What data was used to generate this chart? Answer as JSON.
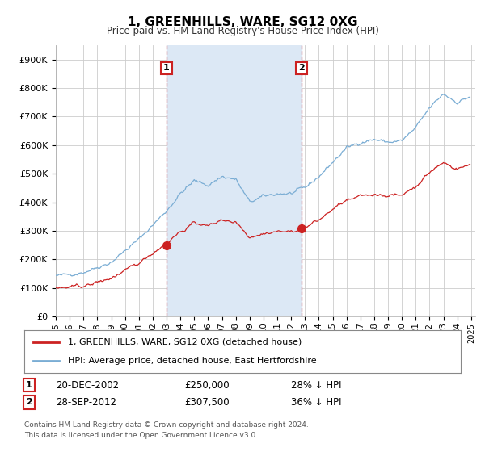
{
  "title": "1, GREENHILLS, WARE, SG12 0XG",
  "subtitle": "Price paid vs. HM Land Registry's House Price Index (HPI)",
  "background_color": "#ffffff",
  "plot_background": "#ffffff",
  "grid_color": "#cccccc",
  "hpi_color": "#7aadd4",
  "price_color": "#cc2222",
  "legend_label_price": "1, GREENHILLS, WARE, SG12 0XG (detached house)",
  "legend_label_hpi": "HPI: Average price, detached house, East Hertfordshire",
  "sale1_date": "20-DEC-2002",
  "sale1_price": "£250,000",
  "sale1_hpi": "28% ↓ HPI",
  "sale2_date": "28-SEP-2012",
  "sale2_price": "£307,500",
  "sale2_hpi": "36% ↓ HPI",
  "footer": "Contains HM Land Registry data © Crown copyright and database right 2024.\nThis data is licensed under the Open Government Licence v3.0.",
  "sale1_year": 2003.0,
  "sale1_value": 250000,
  "sale2_year": 2012.75,
  "sale2_value": 307500,
  "vline1_year": 2003.0,
  "vline2_year": 2012.75,
  "shade_color": "#dce8f5",
  "ytick_labels": [
    "£0",
    "£100K",
    "£200K",
    "£300K",
    "£400K",
    "£500K",
    "£600K",
    "£700K",
    "£800K",
    "£900K"
  ],
  "yticks": [
    0,
    100000,
    200000,
    300000,
    400000,
    500000,
    600000,
    700000,
    800000,
    900000
  ],
  "xlim_start": 1995.0,
  "xlim_end": 2025.3
}
